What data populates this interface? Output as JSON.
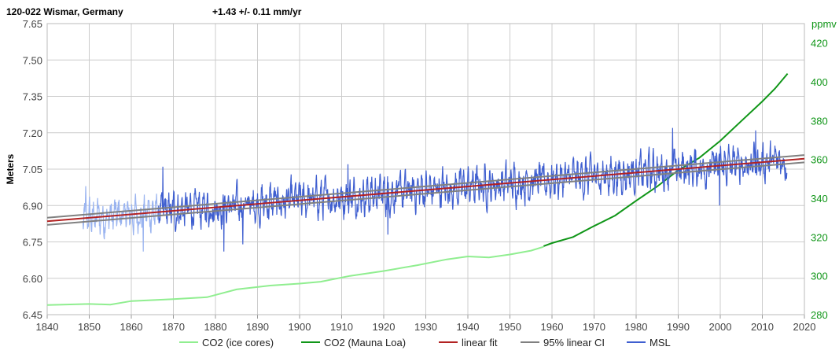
{
  "header": {
    "station": "120-022 Wismar, Germany",
    "trend": "+1.43 +/- 0.11 mm/yr"
  },
  "chart_data": {
    "type": "line",
    "ylabel": "Meters",
    "y2label": "ppmv",
    "xlim": [
      1840,
      2020
    ],
    "ylim": [
      6.45,
      7.65
    ],
    "y2lim": [
      280,
      430
    ],
    "x_ticks": [
      "1840",
      "1850",
      "1860",
      "1870",
      "1880",
      "1890",
      "1900",
      "1910",
      "1920",
      "1930",
      "1940",
      "1950",
      "1960",
      "1970",
      "1980",
      "1990",
      "2000",
      "2010",
      "2020"
    ],
    "y_ticks": [
      "6.45",
      "6.60",
      "6.75",
      "6.90",
      "7.05",
      "7.20",
      "7.35",
      "7.50",
      "7.65"
    ],
    "y2_ticks": [
      "280",
      "300",
      "320",
      "340",
      "360",
      "380",
      "400",
      "420"
    ],
    "grid": true,
    "legend_position": "bottom",
    "legend": [
      "CO2 (ice cores)",
      "CO2 (Mauna Loa)",
      "linear fit",
      "95% linear CI",
      "MSL"
    ],
    "colors": {
      "co2_ice": "#90ee90",
      "co2_mauna": "#109618",
      "linear_fit": "#b22222",
      "ci": "#808080",
      "msl": "#3f5fd0",
      "msl_early": "#9ab4f0",
      "right_axis": "#109618"
    },
    "series": [
      {
        "name": "CO2 (ice cores)",
        "axis": "right",
        "x": [
          1840,
          1850,
          1855,
          1860,
          1870,
          1878,
          1885,
          1893,
          1900,
          1905,
          1912,
          1920,
          1928,
          1935,
          1940,
          1945,
          1950,
          1955,
          1958
        ],
        "y": [
          285,
          285.5,
          285.2,
          287,
          288,
          289,
          293,
          295,
          296,
          297,
          300,
          302.5,
          305.5,
          308.5,
          310,
          309.5,
          311,
          313,
          315
        ]
      },
      {
        "name": "CO2 (Mauna Loa)",
        "axis": "right",
        "x": [
          1958,
          1960,
          1965,
          1970,
          1975,
          1980,
          1985,
          1990,
          1995,
          2000,
          2005,
          2010,
          2013,
          2016
        ],
        "y": [
          315.3,
          316.9,
          320,
          325.7,
          331.1,
          338.7,
          346.1,
          354.4,
          360.8,
          369.6,
          379.8,
          389.9,
          396.5,
          404.2
        ]
      },
      {
        "name": "linear fit",
        "axis": "left",
        "x": [
          1840,
          2020
        ],
        "y": [
          6.835,
          7.093
        ]
      },
      {
        "name": "95% linear CI",
        "axis": "left",
        "x": [
          1840,
          2020
        ],
        "y_upper": [
          6.85,
          7.108
        ],
        "y_lower": [
          6.82,
          7.078
        ]
      },
      {
        "name": "MSL",
        "axis": "left",
        "x_start": 1848.5,
        "x_end": 2015.9,
        "x_split": 1866.5,
        "trend_slope": 0.00143,
        "trend_intercept_1840": 6.835,
        "noise_amplitude": 0.085,
        "notable": [
          {
            "x": 1849.2,
            "y": 6.98
          },
          {
            "x": 1853.5,
            "y": 6.77
          },
          {
            "x": 1862.8,
            "y": 6.71
          },
          {
            "x": 1867.5,
            "y": 7.06
          },
          {
            "x": 1882.0,
            "y": 6.71
          },
          {
            "x": 1886.5,
            "y": 6.74
          },
          {
            "x": 1911.5,
            "y": 7.07
          },
          {
            "x": 1921.0,
            "y": 6.78
          },
          {
            "x": 1988.7,
            "y": 7.22
          },
          {
            "x": 1999.8,
            "y": 6.9
          },
          {
            "x": 2008.4,
            "y": 7.21
          }
        ]
      }
    ]
  }
}
